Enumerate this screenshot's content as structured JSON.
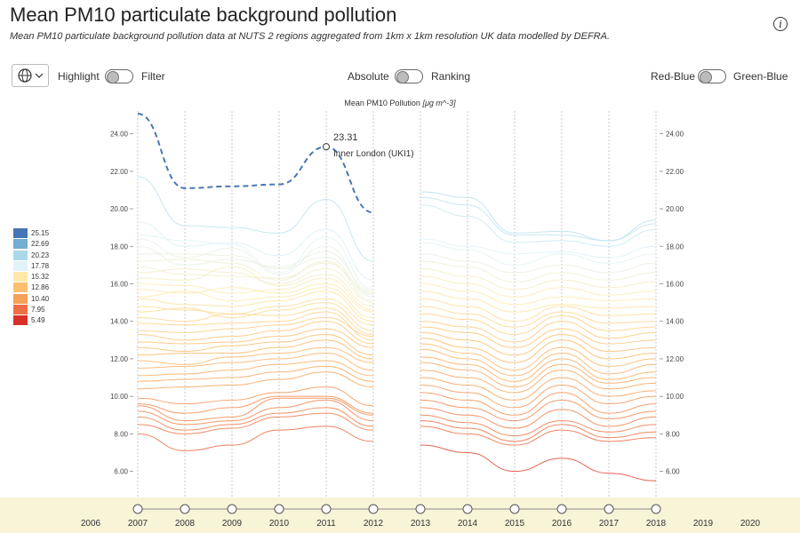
{
  "header": {
    "title": "Mean PM10 particulate background pollution",
    "subtitle": "Mean PM10 particulate background pollution data at NUTS 2 regions aggregated from 1km x 1km resolution UK data modelled by DEFRA.",
    "info_icon": "info-icon",
    "info_label": "i"
  },
  "controls": {
    "globe_icon": "globe-icon",
    "highlight_label": "Highlight",
    "filter_label": "Filter",
    "absolute_label": "Absolute",
    "ranking_label": "Ranking",
    "redblue_label": "Red-Blue",
    "greenblue_label": "Green-Blue"
  },
  "chart_data": {
    "type": "line",
    "title": "",
    "ylabel": "Mean PM10 Pollution",
    "ylabel_unit": "[μg m^-3]",
    "xlabel": "",
    "ylim": [
      5.2,
      25.2
    ],
    "y_ticks": [
      "24.00",
      "22.00",
      "20.00",
      "18.00",
      "16.00",
      "14.00",
      "12.00",
      "10.00",
      "8.00",
      "6.00"
    ],
    "years": [
      "2007",
      "2008",
      "2009",
      "2010",
      "2011",
      "2012",
      "2013",
      "2014",
      "2015",
      "2016",
      "2017",
      "2018"
    ],
    "timeline_years": [
      "2006",
      "2007",
      "2008",
      "2009",
      "2010",
      "2011",
      "2012",
      "2013",
      "2014",
      "2015",
      "2016",
      "2017",
      "2018",
      "2019",
      "2020"
    ],
    "grid": true,
    "legend_position": "left",
    "highlight": {
      "name": "Inner London (UKI1)",
      "year": "2011",
      "value": 23.31,
      "value_label": "23.31",
      "values": [
        25.1,
        21.1,
        21.2,
        21.3,
        23.31,
        19.8
      ]
    },
    "series_2007_2012": [
      [
        21.7,
        19.1,
        19.0,
        18.7,
        20.5,
        17.2
      ],
      [
        19.3,
        18.0,
        18.2,
        17.5,
        18.9,
        16.2
      ],
      [
        18.6,
        18.3,
        18.1,
        16.6,
        18.5,
        15.7
      ],
      [
        18.4,
        17.4,
        17.9,
        16.5,
        18.0,
        15.4
      ],
      [
        18.0,
        17.0,
        17.3,
        16.9,
        17.7,
        15.6
      ],
      [
        17.6,
        17.6,
        17.5,
        16.8,
        17.4,
        15.3
      ],
      [
        17.2,
        17.3,
        17.1,
        16.2,
        17.2,
        15.1
      ],
      [
        16.9,
        16.5,
        16.4,
        16.3,
        17.1,
        15.5
      ],
      [
        16.6,
        16.8,
        16.6,
        16.0,
        16.8,
        15.0
      ],
      [
        16.3,
        16.2,
        16.9,
        15.9,
        16.5,
        14.8
      ],
      [
        16.0,
        15.9,
        15.5,
        15.7,
        16.3,
        14.6
      ],
      [
        15.7,
        15.5,
        15.8,
        15.5,
        16.0,
        14.5
      ],
      [
        15.3,
        15.6,
        15.1,
        15.3,
        15.8,
        14.2
      ],
      [
        15.2,
        14.9,
        14.8,
        15.1,
        15.6,
        14.0
      ],
      [
        14.8,
        14.6,
        14.4,
        14.8,
        15.2,
        13.8
      ],
      [
        14.5,
        14.7,
        14.2,
        14.6,
        15.0,
        13.5
      ],
      [
        14.2,
        14.0,
        14.4,
        14.3,
        14.7,
        13.3
      ],
      [
        13.9,
        13.8,
        13.9,
        14.0,
        14.5,
        13.0
      ],
      [
        13.5,
        13.4,
        13.6,
        13.8,
        14.2,
        13.2
      ],
      [
        13.3,
        13.0,
        13.2,
        13.5,
        14.0,
        12.8
      ],
      [
        12.9,
        12.8,
        12.9,
        13.2,
        13.6,
        12.6
      ],
      [
        12.6,
        12.4,
        12.7,
        12.9,
        13.3,
        12.2
      ],
      [
        12.2,
        12.3,
        12.3,
        12.6,
        13.0,
        12.0
      ],
      [
        11.9,
        11.7,
        12.1,
        12.3,
        12.6,
        11.8
      ],
      [
        11.5,
        11.6,
        11.8,
        12.0,
        12.3,
        11.4
      ],
      [
        11.1,
        11.2,
        11.4,
        11.7,
        11.9,
        11.1
      ],
      [
        10.8,
        10.9,
        11.0,
        11.3,
        11.6,
        10.8
      ],
      [
        10.4,
        10.5,
        10.6,
        10.9,
        11.3,
        10.5
      ],
      [
        9.9,
        9.6,
        9.8,
        10.2,
        10.5,
        9.5
      ],
      [
        9.6,
        9.1,
        9.4,
        10.0,
        10.0,
        9.1
      ],
      [
        9.5,
        8.7,
        8.9,
        9.9,
        9.9,
        9.0
      ],
      [
        9.2,
        8.5,
        8.7,
        9.4,
        9.8,
        8.7
      ],
      [
        8.9,
        8.2,
        8.5,
        9.1,
        9.4,
        8.4
      ],
      [
        8.5,
        8.0,
        8.3,
        8.9,
        9.1,
        8.2
      ],
      [
        8.0,
        7.1,
        7.4,
        8.2,
        8.4,
        7.6
      ]
    ],
    "series_2013_2018": [
      [
        20.9,
        20.6,
        18.7,
        18.8,
        18.3,
        19.4
      ],
      [
        20.6,
        20.2,
        18.6,
        18.6,
        18.3,
        19.2
      ],
      [
        20.2,
        19.6,
        18.2,
        18.3,
        18.0,
        18.9
      ],
      [
        18.4,
        18.0,
        17.6,
        17.7,
        17.4,
        18.0
      ],
      [
        18.2,
        17.8,
        17.0,
        17.6,
        17.1,
        17.6
      ],
      [
        17.6,
        17.2,
        16.6,
        17.0,
        16.6,
        17.1
      ],
      [
        17.2,
        16.9,
        16.1,
        16.6,
        16.2,
        16.6
      ],
      [
        16.8,
        16.4,
        15.7,
        16.2,
        15.8,
        16.1
      ],
      [
        16.4,
        16.0,
        15.3,
        15.8,
        15.4,
        15.6
      ],
      [
        16.0,
        15.6,
        14.9,
        15.3,
        15.1,
        15.2
      ],
      [
        15.6,
        15.2,
        14.5,
        14.9,
        14.7,
        14.8
      ],
      [
        15.2,
        14.8,
        14.0,
        14.8,
        14.3,
        14.4
      ],
      [
        14.8,
        14.4,
        13.7,
        14.5,
        13.9,
        14.0
      ],
      [
        14.4,
        14.1,
        13.3,
        14.3,
        13.5,
        13.7
      ],
      [
        14.0,
        13.7,
        12.9,
        14.0,
        13.1,
        13.4
      ],
      [
        13.7,
        13.4,
        12.6,
        13.6,
        12.8,
        13.0
      ],
      [
        13.4,
        13.0,
        12.2,
        13.3,
        12.4,
        12.6
      ],
      [
        13.1,
        12.6,
        11.8,
        13.0,
        12.0,
        12.3
      ],
      [
        12.8,
        12.3,
        11.4,
        12.6,
        11.6,
        12.0
      ],
      [
        12.5,
        12.0,
        11.1,
        12.3,
        11.2,
        11.7
      ],
      [
        12.1,
        11.7,
        10.8,
        12.0,
        10.9,
        11.3
      ],
      [
        11.8,
        11.4,
        10.5,
        11.7,
        10.7,
        11.0
      ],
      [
        11.4,
        11.0,
        10.2,
        11.4,
        10.4,
        10.7
      ],
      [
        11.0,
        10.6,
        9.8,
        11.0,
        10.0,
        10.3
      ],
      [
        10.6,
        10.2,
        9.4,
        10.6,
        9.6,
        10.0
      ],
      [
        10.2,
        9.8,
        9.0,
        10.2,
        9.1,
        9.6
      ],
      [
        9.8,
        9.4,
        8.7,
        9.8,
        8.8,
        9.2
      ],
      [
        9.4,
        9.0,
        8.3,
        9.3,
        8.4,
        8.9
      ],
      [
        9.0,
        8.6,
        7.9,
        8.7,
        8.1,
        8.5
      ],
      [
        8.7,
        8.3,
        7.6,
        8.5,
        7.8,
        8.1
      ],
      [
        8.4,
        8.0,
        7.4,
        8.2,
        7.6,
        7.8
      ],
      [
        7.4,
        7.0,
        6.0,
        6.7,
        5.9,
        5.5
      ]
    ],
    "legend": {
      "labels": [
        "25.15",
        "22.69",
        "20.23",
        "17.78",
        "15.32",
        "12.86",
        "10.40",
        "7.95",
        "5.49"
      ],
      "colors": [
        "#4575b4",
        "#74add1",
        "#abd9e9",
        "#e0f3f8",
        "#ffe9a8",
        "#fdbf6f",
        "#f6a05a",
        "#ee6e44",
        "#d73027"
      ]
    }
  }
}
